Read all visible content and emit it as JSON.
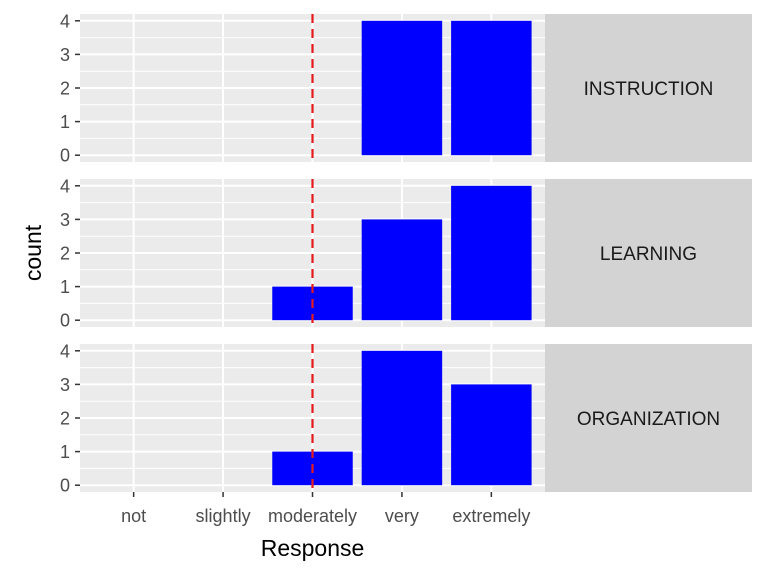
{
  "chart_data": {
    "type": "bar",
    "categories": [
      "not",
      "slightly",
      "moderately",
      "very",
      "extremely"
    ],
    "panels": [
      {
        "label": "INSTRUCTION",
        "values": [
          0,
          0,
          0,
          4,
          4
        ]
      },
      {
        "label": "LEARNING",
        "values": [
          0,
          0,
          1,
          3,
          4
        ]
      },
      {
        "label": "ORGANIZATION",
        "values": [
          0,
          0,
          1,
          4,
          3
        ]
      }
    ],
    "xlabel": "Response",
    "ylabel": "count",
    "ylim": [
      0,
      4
    ],
    "yticks": [
      "0",
      "1",
      "2",
      "3",
      "4"
    ],
    "reference_line": {
      "x_position": 2.45,
      "style": "dashed"
    },
    "grid": true
  },
  "colors": {
    "bar": "#0000ff",
    "reference_line": "#e41a1c",
    "panel_background": "#ebebeb",
    "strip_background": "#d3d3d3",
    "grid": "#ffffff"
  }
}
